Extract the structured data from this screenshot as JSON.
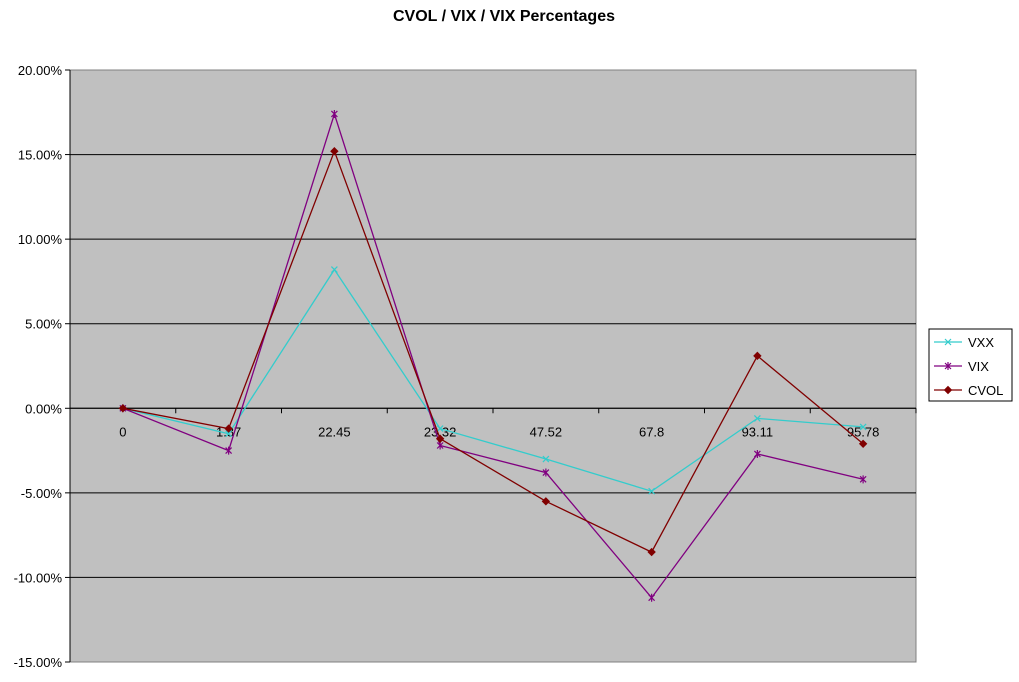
{
  "chart_data": {
    "type": "line",
    "title": "CVOL / VIX / VIX Percentages",
    "xlabel": "",
    "ylabel": "",
    "categories": [
      "0",
      "1.87",
      "22.45",
      "23.32",
      "47.52",
      "67.8",
      "93.11",
      "95.78"
    ],
    "ylim": [
      -0.15,
      0.2
    ],
    "y_ticks": [
      "20.00%",
      "15.00%",
      "10.00%",
      "5.00%",
      "0.00%",
      "-5.00%",
      "-10.00%",
      "-15.00%"
    ],
    "y_tick_values": [
      0.2,
      0.15,
      0.1,
      0.05,
      0.0,
      -0.05,
      -0.1,
      -0.15
    ],
    "grid": true,
    "legend_position": "right",
    "plot_background": "#c0c0c0",
    "series": [
      {
        "name": "VXX",
        "color": "#33cccc",
        "marker": "x",
        "values": [
          0.0,
          -0.015,
          0.082,
          -0.012,
          -0.03,
          -0.049,
          -0.006,
          -0.011
        ]
      },
      {
        "name": "VIX",
        "color": "#800080",
        "marker": "asterisk",
        "values": [
          0.0,
          -0.025,
          0.174,
          -0.022,
          -0.038,
          -0.112,
          -0.027,
          -0.042
        ]
      },
      {
        "name": "CVOL",
        "color": "#800000",
        "marker": "diamond",
        "values": [
          0.0,
          -0.012,
          0.152,
          -0.018,
          -0.055,
          -0.085,
          0.031,
          -0.021
        ]
      }
    ]
  }
}
